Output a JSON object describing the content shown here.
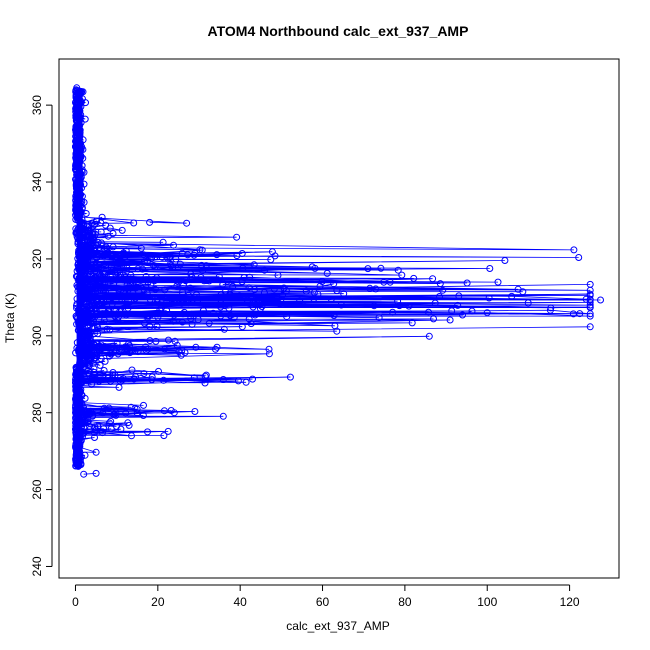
{
  "chart_data": {
    "type": "scatter",
    "title": "ATOM4 Northbound calc_ext_937_AMP",
    "xlabel": "calc_ext_937_AMP",
    "ylabel": "Theta (K)",
    "xlim": [
      -4,
      132
    ],
    "ylim": [
      237,
      372
    ],
    "xticks": [
      0,
      20,
      40,
      60,
      80,
      100,
      120
    ],
    "yticks": [
      240,
      260,
      280,
      300,
      320,
      340,
      360
    ],
    "marker": "open-circle",
    "connected": true,
    "grid": false,
    "series_color": "#0000ff",
    "points_notable": [
      {
        "x": 0.3,
        "y": 364.5
      },
      {
        "x": 0.6,
        "y": 358
      },
      {
        "x": 1.0,
        "y": 338
      },
      {
        "x": 27,
        "y": 329.3
      },
      {
        "x": 18,
        "y": 329.5
      },
      {
        "x": 29,
        "y": 321.5
      },
      {
        "x": 40.5,
        "y": 321.4
      },
      {
        "x": 107.5,
        "y": 312.1
      },
      {
        "x": 124,
        "y": 309.5
      },
      {
        "x": 127.5,
        "y": 309.3
      },
      {
        "x": 100,
        "y": 306
      },
      {
        "x": 94,
        "y": 305.4
      },
      {
        "x": 63,
        "y": 302.6
      },
      {
        "x": 47,
        "y": 296.5
      },
      {
        "x": 34,
        "y": 296.5
      },
      {
        "x": 31.5,
        "y": 289.5
      },
      {
        "x": 29,
        "y": 280.3
      },
      {
        "x": 24,
        "y": 280
      },
      {
        "x": 17.5,
        "y": 275
      },
      {
        "x": 5,
        "y": 269.7
      },
      {
        "x": 5,
        "y": 264.2
      },
      {
        "x": 2,
        "y": 264
      }
    ]
  }
}
